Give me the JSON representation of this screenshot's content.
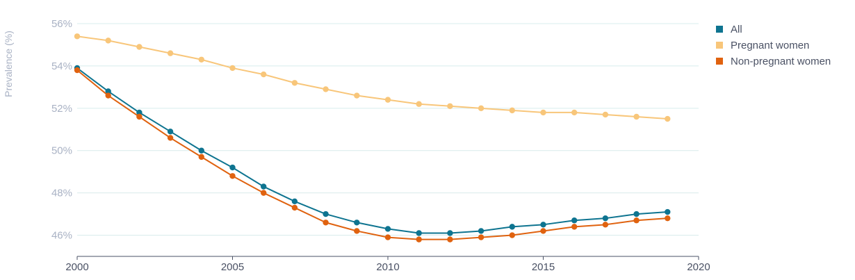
{
  "chart_data": {
    "type": "line",
    "title": "",
    "xlabel": "",
    "ylabel": "Prevalence (%)",
    "x": [
      2000,
      2001,
      2002,
      2003,
      2004,
      2005,
      2006,
      2007,
      2008,
      2009,
      2010,
      2011,
      2012,
      2013,
      2014,
      2015,
      2016,
      2017,
      2018,
      2019
    ],
    "xlim": [
      2000,
      2020
    ],
    "ylim": [
      45,
      56
    ],
    "x_ticks": [
      2000,
      2005,
      2010,
      2015,
      2020
    ],
    "x_tick_labels": [
      "2000",
      "2005",
      "2010",
      "2015",
      "2020"
    ],
    "y_ticks": [
      46,
      48,
      50,
      52,
      54,
      56
    ],
    "y_tick_labels": [
      "46%",
      "48%",
      "50%",
      "52%",
      "54%",
      "56%"
    ],
    "grid": "horizontal",
    "legend_position": "top-right",
    "series": [
      {
        "name": "All",
        "color": "#0e7490",
        "values": [
          53.9,
          52.8,
          51.8,
          50.9,
          50.0,
          49.2,
          48.3,
          47.6,
          47.0,
          46.6,
          46.3,
          46.1,
          46.1,
          46.2,
          46.4,
          46.5,
          46.7,
          46.8,
          47.0,
          47.1
        ]
      },
      {
        "name": "Pregnant women",
        "color": "#f8c67a",
        "values": [
          55.4,
          55.2,
          54.9,
          54.6,
          54.3,
          53.9,
          53.6,
          53.2,
          52.9,
          52.6,
          52.4,
          52.2,
          52.1,
          52.0,
          51.9,
          51.8,
          51.8,
          51.7,
          51.6,
          51.5
        ]
      },
      {
        "name": "Non-pregnant women",
        "color": "#e0620f",
        "values": [
          53.8,
          52.6,
          51.6,
          50.6,
          49.7,
          48.8,
          48.0,
          47.3,
          46.6,
          46.2,
          45.9,
          45.8,
          45.8,
          45.9,
          46.0,
          46.2,
          46.4,
          46.5,
          46.7,
          46.8
        ]
      }
    ]
  }
}
